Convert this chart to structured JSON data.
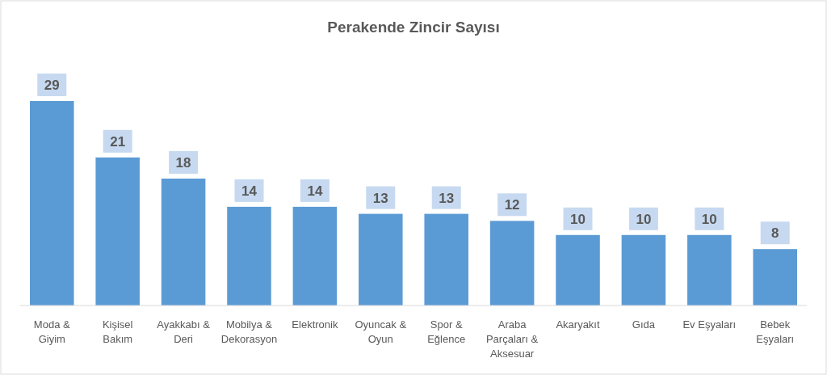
{
  "chart_data": {
    "type": "bar",
    "title": "Perakende Zincir Sayısı",
    "categories": [
      "Moda & Giyim",
      "Kişisel Bakım",
      "Ayakkabı & Deri",
      "Mobilya & Dekorasyon",
      "Elektronik",
      "Oyuncak & Oyun",
      "Spor & Eğlence",
      "Araba Parçaları & Aksesuar",
      "Akaryakıt",
      "Gıda",
      "Ev Eşyaları",
      "Bebek Eşyaları"
    ],
    "values": [
      29,
      21,
      18,
      14,
      14,
      13,
      13,
      12,
      10,
      10,
      10,
      8
    ],
    "color": "#5b9bd5",
    "data_labels": true
  }
}
